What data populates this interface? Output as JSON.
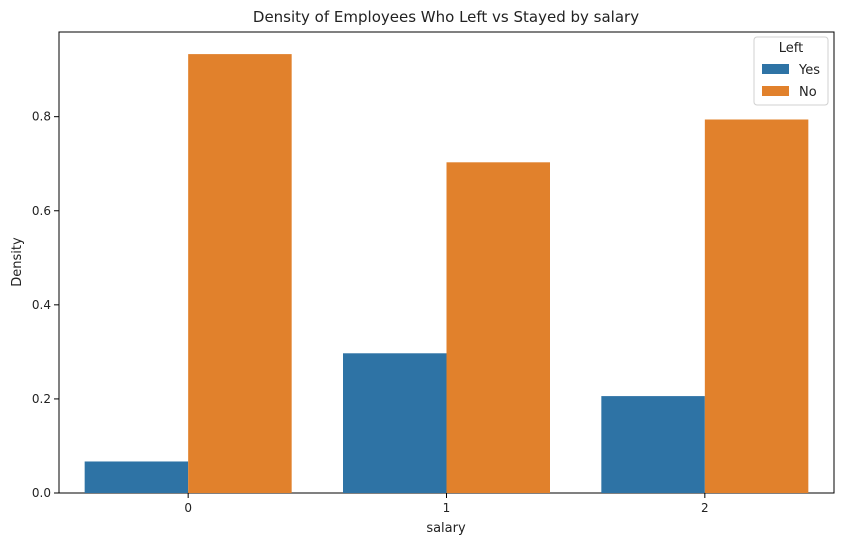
{
  "chart_data": {
    "type": "bar",
    "title": "Density of Employees Who Left vs Stayed by salary",
    "xlabel": "salary",
    "ylabel": "Density",
    "categories": [
      "0",
      "1",
      "2"
    ],
    "series": [
      {
        "name": "Yes",
        "color": "#2e73a5",
        "values": [
          0.067,
          0.297,
          0.206
        ]
      },
      {
        "name": "No",
        "color": "#e1812c",
        "values": [
          0.933,
          0.703,
          0.794
        ]
      }
    ],
    "ylim": [
      0,
      0.98
    ],
    "yticks": [
      "0.0",
      "0.2",
      "0.4",
      "0.6",
      "0.8"
    ],
    "legend": {
      "title": "Left",
      "placement": "top-right"
    },
    "grid": false
  }
}
